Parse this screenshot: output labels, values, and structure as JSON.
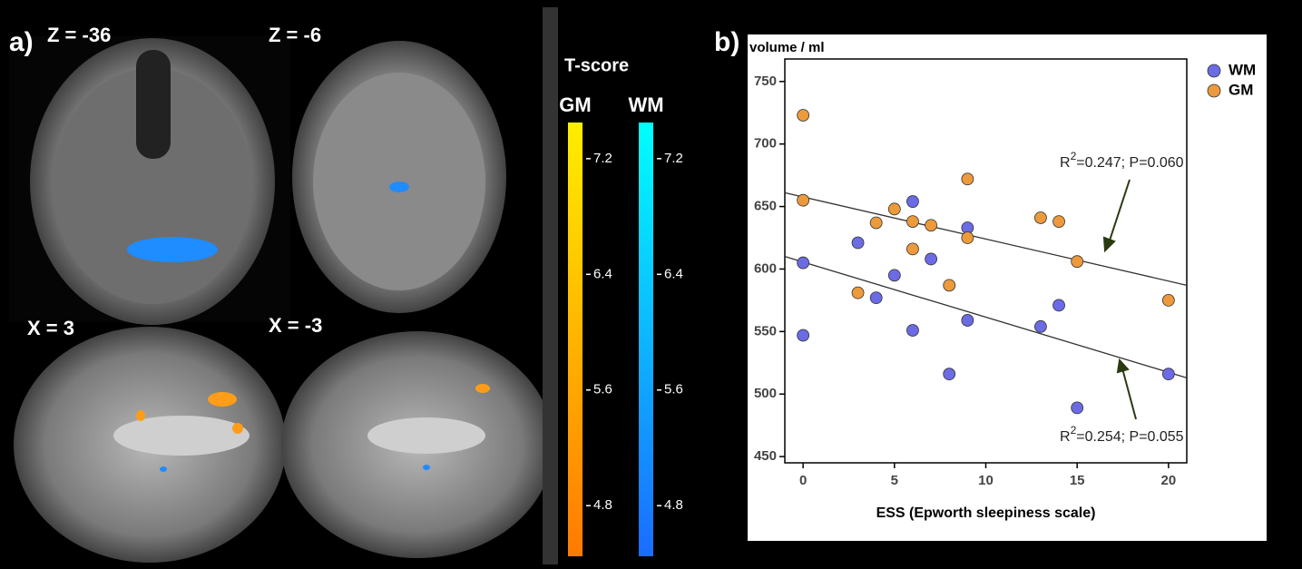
{
  "panel_a": {
    "label": "a)",
    "slices": [
      "Z = -36",
      "Z = -6",
      "X = 3",
      "X = -3"
    ],
    "colorbar_title": "T-score",
    "colorbars": [
      {
        "name": "GM",
        "ticks": [
          7.2,
          6.4,
          5.6,
          4.8
        ],
        "lim": [
          4.45,
          7.45
        ]
      },
      {
        "name": "WM",
        "ticks": [
          7.2,
          6.4,
          5.6,
          4.8
        ],
        "lim": [
          4.45,
          7.45
        ]
      }
    ]
  },
  "chart_data": {
    "type": "scatter",
    "panel_label": "b)",
    "y_label": "volume / ml",
    "x_label": "ESS (Epworth sleepiness scale)",
    "xlim": [
      -1,
      21
    ],
    "xticks": [
      0,
      5,
      10,
      15,
      20
    ],
    "ylim": [
      445,
      768
    ],
    "yticks": [
      450,
      500,
      550,
      600,
      650,
      700,
      750
    ],
    "legend": "top-right",
    "series": [
      {
        "name": "WM",
        "color": "#6b6be6",
        "x": [
          0,
          0,
          3,
          4,
          5,
          6,
          6,
          7,
          8,
          9,
          9,
          13,
          14,
          15,
          20
        ],
        "values": [
          605,
          547,
          621,
          577,
          595,
          654,
          551,
          608,
          516,
          633,
          559,
          554,
          571,
          489,
          516
        ]
      },
      {
        "name": "GM",
        "color": "#ec9a3c",
        "x": [
          0,
          0,
          3,
          4,
          5,
          6,
          6,
          7,
          8,
          9,
          9,
          13,
          14,
          15,
          20
        ],
        "values": [
          723,
          655,
          581,
          637,
          648,
          638,
          616,
          635,
          587,
          672,
          625,
          641,
          638,
          606,
          575
        ]
      }
    ],
    "fits": [
      {
        "x": [
          -1,
          21
        ],
        "values": [
          661,
          587
        ]
      },
      {
        "x": [
          -1,
          21
        ],
        "values": [
          610,
          513
        ]
      }
    ],
    "annotations": [
      {
        "base": "R",
        "sup": "2",
        "rest": "=0.247; P=0.060"
      },
      {
        "base": "R",
        "sup": "2",
        "rest": "=0.254; P=0.055"
      }
    ]
  }
}
